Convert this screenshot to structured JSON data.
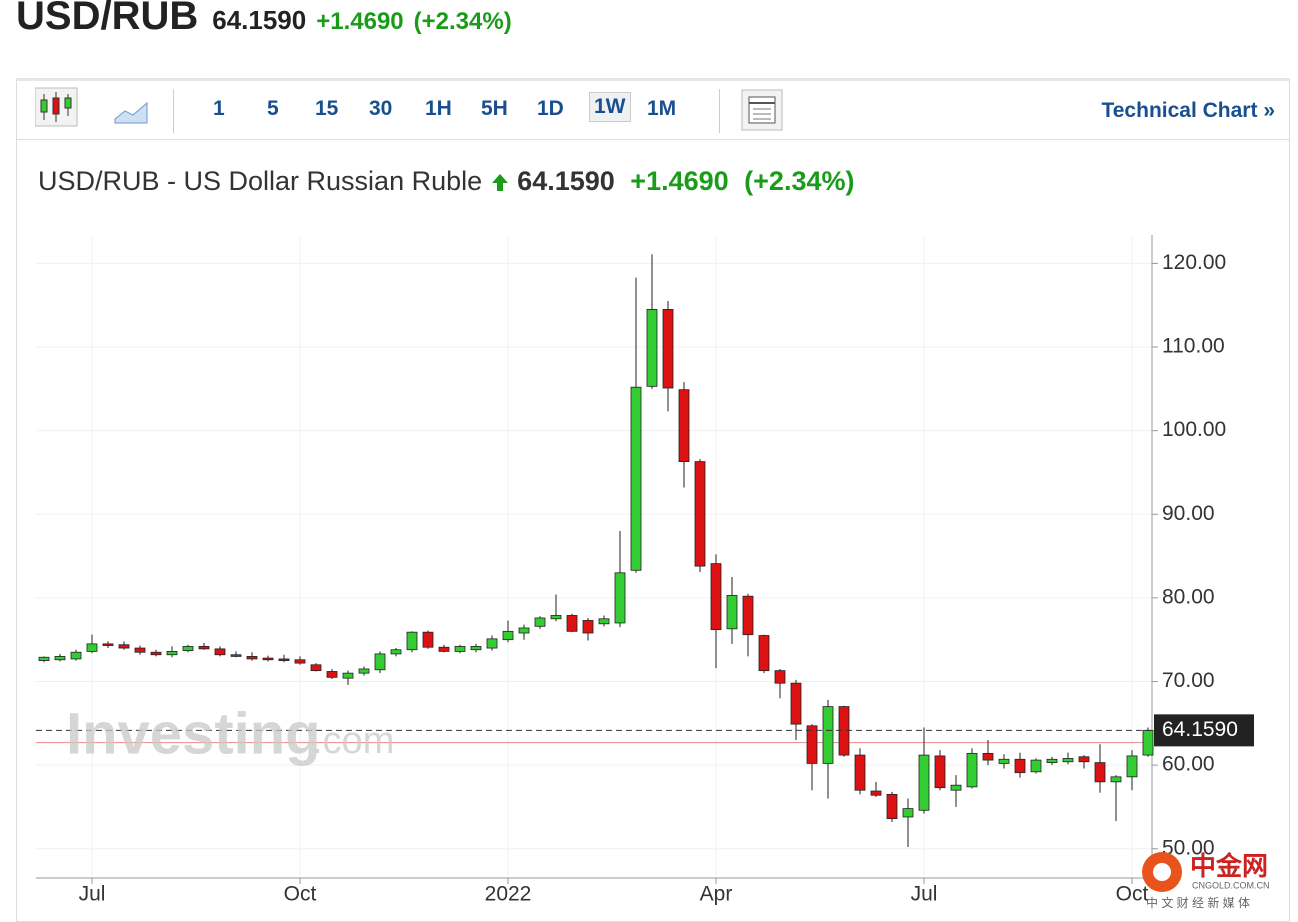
{
  "header": {
    "symbol": "USD/RUB",
    "price": "64.1590",
    "change": "+1.4690",
    "change_pct": "(+2.34%)"
  },
  "toolbar": {
    "intervals": [
      "1",
      "5",
      "15",
      "30",
      "1H",
      "5H",
      "1D",
      "1W",
      "1M"
    ],
    "active": "1W",
    "technical_chart": "Technical Chart",
    "chevron": "»"
  },
  "watermark": {
    "brand": "Investing",
    "suffix": ".com"
  },
  "logo": {
    "name": "中金网",
    "domain": "CNGOLD.COM.CN",
    "tagline": "中 文 财 经 新 媒 体"
  },
  "chart_data": {
    "type": "candlestick",
    "title": "USD/RUB - US Dollar Russian Ruble",
    "categories": [
      null,
      null,
      null,
      "Jul",
      null,
      null,
      null,
      null,
      null,
      null,
      null,
      null,
      null,
      null,
      null,
      null,
      "Oct",
      null,
      null,
      null,
      null,
      null,
      null,
      null,
      null,
      null,
      null,
      null,
      null,
      "2022",
      null,
      null,
      null,
      null,
      null,
      null,
      null,
      null,
      null,
      null,
      null,
      null,
      "Apr",
      null,
      null,
      null,
      null,
      null,
      null,
      null,
      null,
      null,
      null,
      null,
      null,
      "Jul",
      null,
      null,
      null,
      null,
      null,
      null,
      null,
      null,
      null,
      null,
      null,
      null,
      "Oct",
      null
    ],
    "open": [
      72.5,
      72.6,
      72.7,
      73.6,
      74.5,
      74.4,
      74.0,
      73.5,
      73.2,
      73.7,
      74.2,
      73.9,
      73.2,
      73.0,
      72.8,
      72.7,
      72.6,
      72.0,
      71.2,
      70.4,
      71.0,
      71.4,
      73.3,
      73.8,
      75.9,
      74.1,
      73.6,
      73.8,
      74.0,
      75.0,
      75.8,
      76.6,
      77.5,
      77.9,
      77.3,
      76.9,
      77.0,
      83.3,
      105.3,
      114.5,
      104.9,
      96.3,
      84.1,
      76.3,
      80.2,
      75.5,
      71.3,
      69.8,
      64.7,
      60.2,
      67.0,
      61.2,
      56.9,
      56.5,
      53.8,
      54.6,
      61.1,
      57.0,
      57.4,
      61.4,
      60.2,
      60.7,
      59.2,
      60.3,
      60.4,
      61.0,
      60.3,
      58.0,
      58.6,
      61.2
    ],
    "high": [
      73.0,
      73.3,
      73.8,
      75.6,
      74.8,
      74.8,
      74.3,
      73.8,
      74.2,
      74.4,
      74.6,
      74.2,
      73.6,
      73.5,
      73.1,
      73.2,
      73.0,
      72.2,
      71.5,
      71.3,
      71.8,
      73.6,
      74.0,
      76.0,
      76.1,
      74.4,
      74.4,
      74.5,
      75.5,
      77.3,
      76.8,
      77.8,
      80.4,
      78.1,
      77.6,
      77.9,
      88.0,
      118.3,
      121.1,
      115.5,
      105.8,
      96.6,
      85.2,
      82.5,
      80.5,
      75.6,
      71.5,
      70.2,
      64.9,
      67.8,
      67.1,
      62.0,
      58.0,
      56.8,
      56.0,
      64.5,
      61.8,
      58.8,
      62.0,
      63.0,
      61.3,
      61.5,
      60.8,
      61.0,
      61.5,
      61.2,
      62.5,
      58.8,
      61.8,
      64.5
    ],
    "low": [
      72.3,
      72.4,
      72.5,
      73.4,
      74.0,
      73.8,
      73.2,
      73.0,
      72.9,
      73.5,
      73.8,
      73.0,
      72.9,
      72.5,
      72.4,
      72.3,
      72.0,
      71.2,
      70.3,
      69.6,
      70.7,
      71.0,
      73.0,
      73.5,
      73.9,
      73.5,
      73.4,
      73.5,
      73.7,
      74.7,
      75.0,
      76.3,
      77.2,
      75.9,
      74.9,
      76.6,
      76.5,
      83.0,
      105.0,
      102.3,
      93.2,
      83.1,
      71.6,
      74.5,
      73.0,
      71.0,
      68.0,
      63.0,
      57.0,
      56.0,
      61.0,
      56.5,
      56.2,
      53.2,
      50.2,
      54.2,
      57.0,
      55.0,
      57.2,
      60.0,
      59.6,
      58.5,
      59.0,
      60.0,
      60.1,
      59.6,
      56.7,
      53.3,
      57.0,
      61.0
    ],
    "close": [
      72.9,
      73.0,
      73.5,
      74.5,
      74.3,
      74.0,
      73.5,
      73.2,
      73.6,
      74.2,
      73.9,
      73.2,
      73.0,
      72.7,
      72.6,
      72.5,
      72.2,
      71.3,
      70.5,
      71.0,
      71.5,
      73.3,
      73.8,
      75.9,
      74.1,
      73.6,
      74.2,
      74.2,
      75.1,
      76.0,
      76.4,
      77.6,
      77.9,
      76.0,
      75.8,
      77.5,
      83.0,
      105.2,
      114.5,
      105.1,
      96.3,
      83.8,
      76.2,
      80.3,
      75.6,
      71.3,
      69.8,
      64.9,
      60.2,
      67.0,
      61.2,
      57.0,
      56.4,
      53.6,
      54.8,
      61.2,
      57.3,
      57.6,
      61.4,
      60.6,
      60.7,
      59.1,
      60.6,
      60.7,
      60.8,
      60.4,
      58.0,
      58.6,
      61.1,
      64.159
    ],
    "up_color": "#33cc33",
    "down_color": "#dd1111",
    "prev_close": 62.69,
    "ylim": [
      46.5,
      123.4
    ],
    "yticks": [
      {
        "value": 50,
        "label": "50.00"
      },
      {
        "value": 60,
        "label": "60.00"
      },
      {
        "value": 70,
        "label": "70.00"
      },
      {
        "value": 80,
        "label": "80.00"
      },
      {
        "value": 90,
        "label": "90.00"
      },
      {
        "value": 100,
        "label": "100.00"
      },
      {
        "value": 110,
        "label": "110.00"
      },
      {
        "value": 120,
        "label": "120.00"
      }
    ],
    "grid": true
  }
}
